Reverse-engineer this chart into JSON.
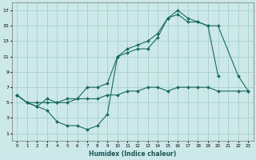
{
  "xlabel": "Humidex (Indice chaleur)",
  "bg_color": "#cce8e8",
  "grid_color": "#99cccc",
  "line_color": "#1a6b5e",
  "line1_x": [
    0,
    1,
    2,
    3,
    4,
    5,
    6,
    7,
    8,
    9,
    10,
    11,
    12,
    13,
    14,
    15,
    16,
    17,
    18,
    19,
    20
  ],
  "line1_y": [
    6,
    5,
    4.5,
    4,
    2.5,
    2,
    2,
    1.5,
    2,
    3.5,
    11,
    11.5,
    12,
    12,
    13.5,
    16,
    17,
    16,
    15.5,
    15,
    8.5
  ],
  "line2_x": [
    0,
    1,
    2,
    3,
    4,
    5,
    6,
    7,
    8,
    9,
    10,
    11,
    12,
    13,
    14,
    15,
    16,
    17,
    18,
    19,
    20,
    22,
    23
  ],
  "line2_y": [
    6,
    5,
    4.5,
    5.5,
    5,
    5.5,
    5.5,
    7,
    7,
    7.5,
    11,
    12,
    12.5,
    13,
    14,
    16,
    16.5,
    15.5,
    15.5,
    15,
    15,
    8.5,
    6.5
  ],
  "line3_x": [
    0,
    1,
    2,
    3,
    4,
    5,
    6,
    7,
    8,
    9,
    10,
    11,
    12,
    13,
    14,
    15,
    16,
    17,
    18,
    19,
    20,
    22,
    23
  ],
  "line3_y": [
    6,
    5,
    5,
    5,
    5,
    5,
    5.5,
    5.5,
    5.5,
    6,
    6,
    6.5,
    6.5,
    7,
    7,
    6.5,
    7,
    7,
    7,
    7,
    6.5,
    6.5,
    6.5
  ],
  "xlim": [
    -0.5,
    23.5
  ],
  "ylim": [
    0,
    18
  ],
  "yticks": [
    1,
    3,
    5,
    7,
    9,
    11,
    13,
    15,
    17
  ],
  "xticks": [
    0,
    1,
    2,
    3,
    4,
    5,
    6,
    7,
    8,
    9,
    10,
    11,
    12,
    13,
    14,
    15,
    16,
    17,
    18,
    19,
    20,
    21,
    22,
    23
  ],
  "xticklabels": [
    "0",
    "1",
    "2",
    "3",
    "4",
    "5",
    "6",
    "7",
    "8",
    "9",
    "10",
    "11",
    "12",
    "13",
    "14",
    "15",
    "16",
    "17",
    "18",
    "19",
    "20",
    "21",
    "22",
    "23"
  ]
}
